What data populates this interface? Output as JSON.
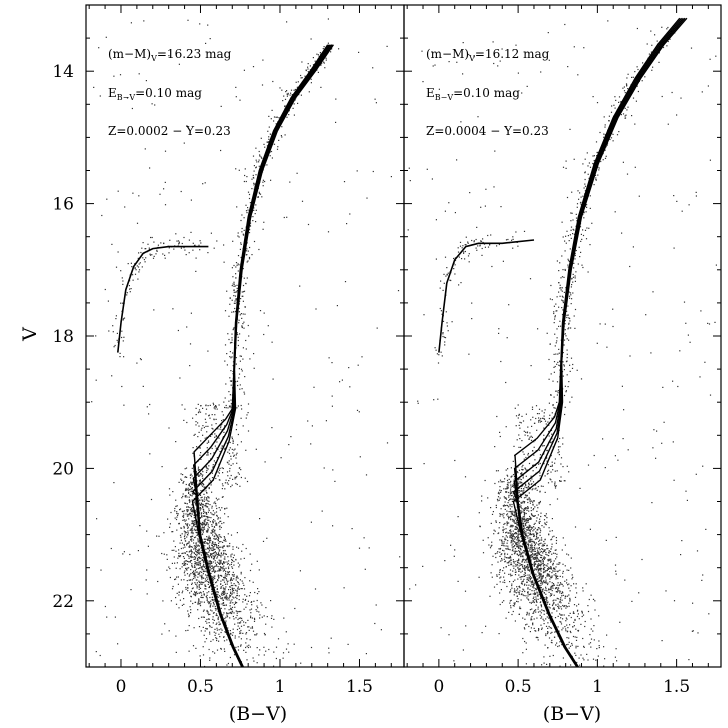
{
  "chart_data": [
    {
      "type": "scatter",
      "xlabel": "(B−V)",
      "ylabel": "V",
      "xlim": [
        -0.22,
        1.78
      ],
      "ylim": [
        23.0,
        13.0
      ],
      "y_inverted": true,
      "x_ticks": [
        {
          "value": 0,
          "label": "0"
        },
        {
          "value": 0.5,
          "label": "0.5"
        },
        {
          "value": 1,
          "label": "1"
        },
        {
          "value": 1.5,
          "label": "1.5"
        }
      ],
      "y_ticks": [
        {
          "value": 14,
          "label": "14"
        },
        {
          "value": 16,
          "label": "16"
        },
        {
          "value": 18,
          "label": "18"
        },
        {
          "value": 20,
          "label": "20"
        },
        {
          "value": 22,
          "label": "22"
        }
      ],
      "annotations": {
        "distance_modulus": {
          "main": "(m−M)",
          "sub": "V",
          "rest": "=16.23 mag"
        },
        "reddening": {
          "main": "E",
          "sub": "B−V",
          "rest": "=0.10 mag"
        },
        "composition": "Z=0.0002 − Y=0.23"
      },
      "grid": false,
      "isochrone_count": 5,
      "isochrones": {
        "ms": [
          [
            0.48,
            20.4
          ],
          [
            0.5,
            21.0
          ],
          [
            0.56,
            21.6
          ],
          [
            0.63,
            22.2
          ],
          [
            0.71,
            22.7
          ],
          [
            0.77,
            23.0
          ]
        ],
        "turnoff_color": 0.46,
        "turnoff_mag": [
          19.75,
          19.95,
          20.15,
          20.35,
          20.5
        ],
        "subgiant": [
          [
            0.56,
            19.5
          ],
          [
            0.66,
            19.25
          ],
          [
            0.7,
            19.1
          ]
        ],
        "rgb": [
          [
            0.7,
            19.1
          ],
          [
            0.71,
            18.5
          ],
          [
            0.72,
            17.8
          ],
          [
            0.75,
            17.0
          ],
          [
            0.8,
            16.2
          ],
          [
            0.87,
            15.5
          ],
          [
            0.96,
            14.9
          ],
          [
            1.07,
            14.4
          ],
          [
            1.19,
            14.0
          ],
          [
            1.3,
            13.6
          ]
        ],
        "rgb_spread": 0.04
      },
      "horizontal_branch": [
        [
          -0.02,
          18.25
        ],
        [
          0.0,
          17.8
        ],
        [
          0.03,
          17.3
        ],
        [
          0.08,
          16.95
        ],
        [
          0.14,
          16.75
        ],
        [
          0.2,
          16.68
        ],
        [
          0.3,
          16.65
        ],
        [
          0.45,
          16.65
        ],
        [
          0.55,
          16.65
        ]
      ],
      "star_count": 3000
    },
    {
      "type": "scatter",
      "xlabel": "(B−V)",
      "ylabel": "",
      "xlim": [
        -0.22,
        1.78
      ],
      "ylim": [
        23.0,
        13.0
      ],
      "y_inverted": true,
      "x_ticks": [
        {
          "value": 0,
          "label": "0"
        },
        {
          "value": 0.5,
          "label": "0.5"
        },
        {
          "value": 1,
          "label": "1"
        },
        {
          "value": 1.5,
          "label": "1.5"
        }
      ],
      "y_ticks": [],
      "annotations": {
        "distance_modulus": {
          "main": "(m−M)",
          "sub": "V",
          "rest": "=16.12 mag"
        },
        "reddening": {
          "main": "E",
          "sub": "B−V",
          "rest": "=0.10 mag"
        },
        "composition": "Z=0.0004 − Y=0.23"
      },
      "grid": false,
      "isochrone_count": 5,
      "isochrones": {
        "ms": [
          [
            0.5,
            20.5
          ],
          [
            0.53,
            21.0
          ],
          [
            0.6,
            21.6
          ],
          [
            0.7,
            22.2
          ],
          [
            0.8,
            22.7
          ],
          [
            0.88,
            23.0
          ]
        ],
        "turnoff_color": 0.48,
        "turnoff_mag": [
          19.8,
          20.0,
          20.2,
          20.35,
          20.5
        ],
        "subgiant": [
          [
            0.62,
            19.5
          ],
          [
            0.73,
            19.2
          ],
          [
            0.76,
            19.0
          ]
        ],
        "rgb": [
          [
            0.76,
            19.0
          ],
          [
            0.77,
            18.4
          ],
          [
            0.78,
            17.8
          ],
          [
            0.82,
            17.0
          ],
          [
            0.88,
            16.2
          ],
          [
            0.98,
            15.4
          ],
          [
            1.1,
            14.7
          ],
          [
            1.24,
            14.1
          ],
          [
            1.38,
            13.6
          ],
          [
            1.52,
            13.2
          ]
        ],
        "rgb_spread": 0.05
      },
      "horizontal_branch": [
        [
          0.0,
          18.25
        ],
        [
          0.02,
          17.8
        ],
        [
          0.05,
          17.2
        ],
        [
          0.1,
          16.85
        ],
        [
          0.17,
          16.65
        ],
        [
          0.25,
          16.6
        ],
        [
          0.4,
          16.6
        ],
        [
          0.6,
          16.55
        ]
      ],
      "star_count": 3000
    }
  ]
}
